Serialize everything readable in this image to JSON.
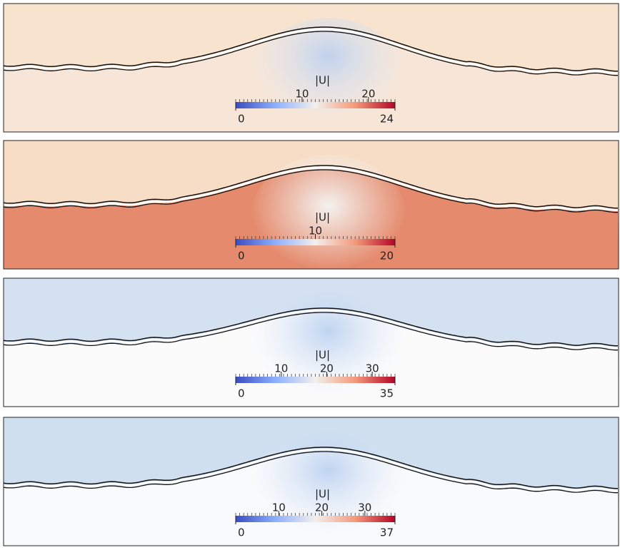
{
  "chart_data": [
    {
      "type": "heatmap",
      "colorbar_label": "|U|",
      "clim": [
        0,
        24
      ],
      "cticks": [
        10,
        20
      ]
    },
    {
      "type": "heatmap",
      "colorbar_label": "|U|",
      "clim": [
        0,
        20
      ],
      "cticks": [
        10
      ]
    },
    {
      "type": "heatmap",
      "colorbar_label": "|U|",
      "clim": [
        0,
        35
      ],
      "cticks": [
        10,
        20,
        30
      ]
    },
    {
      "type": "heatmap",
      "colorbar_label": "|U|",
      "clim": [
        0,
        37
      ],
      "cticks": [
        10,
        20,
        30
      ]
    }
  ]
}
